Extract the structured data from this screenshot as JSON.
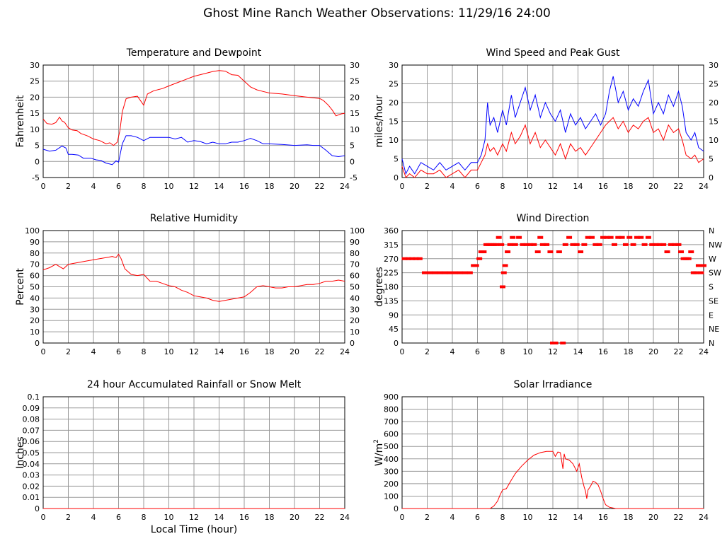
{
  "page": {
    "title": "Ghost Mine Ranch Weather Observations: 11/29/16 24:00"
  },
  "colors": {
    "primary": "#ff0000",
    "secondary": "#0000ff",
    "grid": "#999999"
  },
  "chart_data": [
    {
      "id": "temp",
      "type": "line",
      "title": "Temperature and Dewpoint",
      "ylabel": "Fahrenheit",
      "xlim": [
        0,
        24
      ],
      "ylim": [
        -5,
        30
      ],
      "yticks": [
        -5,
        0,
        5,
        10,
        15,
        20,
        25,
        30
      ],
      "right_ticks": [
        "-5",
        "0",
        "5",
        "10",
        "15",
        "20",
        "25",
        "30"
      ],
      "xticks": [
        0,
        2,
        4,
        6,
        8,
        10,
        12,
        14,
        16,
        18,
        20,
        22,
        24
      ],
      "grid": true,
      "series": [
        {
          "color": "#ff0000",
          "x": [
            0,
            0.3,
            0.7,
            1.0,
            1.3,
            1.5,
            1.7,
            2.0,
            2.3,
            2.7,
            3.0,
            3.5,
            4.0,
            4.5,
            5.0,
            5.3,
            5.6,
            5.9,
            6.1,
            6.3,
            6.6,
            7.0,
            7.5,
            8.0,
            8.3,
            8.8,
            9.5,
            10.0,
            11.0,
            12.0,
            13.0,
            13.5,
            14.0,
            14.5,
            15.0,
            15.5,
            16.0,
            16.5,
            17.0,
            17.5,
            18.0,
            19.0,
            20.0,
            21.0,
            22.0,
            22.3,
            22.7,
            23.0,
            23.3,
            23.7,
            24.0
          ],
          "y": [
            13.2,
            11.8,
            11.6,
            12.1,
            13.8,
            12.6,
            12.2,
            10.5,
            9.8,
            9.6,
            8.7,
            8.0,
            7.0,
            6.5,
            5.5,
            5.8,
            5.0,
            6.0,
            9.5,
            15.5,
            19.5,
            20.0,
            20.3,
            17.5,
            21.0,
            22.0,
            22.7,
            23.5,
            25.0,
            26.5,
            27.5,
            28.0,
            28.3,
            28.1,
            27.0,
            26.8,
            25.0,
            23.2,
            22.3,
            21.8,
            21.3,
            21.0,
            20.5,
            20.0,
            19.6,
            19.0,
            17.5,
            16.0,
            14.2,
            14.8,
            15.0
          ]
        },
        {
          "color": "#0000ff",
          "x": [
            0,
            0.5,
            1.0,
            1.5,
            1.8,
            2.0,
            2.3,
            2.8,
            3.2,
            3.8,
            4.2,
            4.6,
            5.0,
            5.3,
            5.5,
            5.8,
            6.0,
            6.3,
            6.6,
            7.0,
            7.5,
            8.0,
            8.5,
            9.0,
            9.5,
            10.0,
            10.5,
            11.0,
            11.5,
            12.0,
            12.5,
            13.0,
            13.5,
            14.0,
            14.5,
            15.0,
            15.5,
            16.0,
            16.5,
            17.0,
            17.5,
            18.0,
            19.0,
            20.0,
            21.0,
            21.5,
            22.0,
            22.5,
            23.0,
            23.5,
            24.0
          ],
          "y": [
            3.8,
            3.2,
            3.5,
            4.8,
            4.2,
            2.2,
            2.2,
            2.0,
            1.0,
            1.0,
            0.5,
            0.3,
            -0.5,
            -0.8,
            -1.0,
            0.2,
            -0.2,
            5.5,
            8.0,
            8.0,
            7.5,
            6.5,
            7.5,
            7.5,
            7.5,
            7.5,
            7.0,
            7.5,
            6.0,
            6.5,
            6.2,
            5.5,
            6.0,
            5.5,
            5.5,
            6.0,
            6.0,
            6.5,
            7.2,
            6.5,
            5.5,
            5.5,
            5.3,
            5.0,
            5.2,
            5.0,
            5.0,
            3.5,
            1.8,
            1.5,
            1.8
          ]
        }
      ]
    },
    {
      "id": "wind",
      "type": "line",
      "title": "Wind Speed and Peak Gust",
      "ylabel": "miles/hour",
      "xlim": [
        0,
        24
      ],
      "ylim": [
        0,
        30
      ],
      "yticks": [
        0,
        5,
        10,
        15,
        20,
        25,
        30
      ],
      "right_ticks": [
        "0",
        "5",
        "10",
        "15",
        "20",
        "25",
        "30"
      ],
      "xticks": [
        0,
        2,
        4,
        6,
        8,
        10,
        12,
        14,
        16,
        18,
        20,
        22,
        24
      ],
      "grid": true,
      "series": [
        {
          "color": "#0000ff",
          "x": [
            0,
            0.3,
            0.6,
            1.0,
            1.5,
            2.0,
            2.5,
            3.0,
            3.5,
            4.0,
            4.5,
            5.0,
            5.5,
            6.0,
            6.3,
            6.6,
            6.8,
            7.0,
            7.3,
            7.6,
            8.0,
            8.3,
            8.7,
            9.0,
            9.4,
            9.8,
            10.2,
            10.6,
            11.0,
            11.4,
            11.8,
            12.2,
            12.6,
            13.0,
            13.4,
            13.8,
            14.2,
            14.6,
            15.0,
            15.4,
            15.8,
            16.2,
            16.5,
            16.8,
            17.2,
            17.6,
            18.0,
            18.4,
            18.8,
            19.2,
            19.6,
            20.0,
            20.4,
            20.8,
            21.2,
            21.6,
            22.0,
            22.3,
            22.6,
            23.0,
            23.3,
            23.6,
            24.0
          ],
          "y": [
            5,
            1,
            3,
            1,
            4,
            3,
            2,
            4,
            2,
            3,
            4,
            2,
            4,
            4,
            6,
            10,
            20,
            14,
            16,
            12,
            18,
            14,
            22,
            16,
            20,
            24,
            18,
            22,
            16,
            20,
            17,
            15,
            18,
            12,
            17,
            14,
            16,
            13,
            15,
            17,
            14,
            17,
            23,
            27,
            20,
            23,
            18,
            21,
            19,
            23,
            26,
            17,
            20,
            17,
            22,
            19,
            23,
            19,
            12,
            10,
            12,
            8,
            7
          ]
        },
        {
          "color": "#ff0000",
          "x": [
            0,
            0.3,
            0.6,
            1.0,
            1.5,
            2.0,
            2.5,
            3.0,
            3.5,
            4.0,
            4.5,
            5.0,
            5.5,
            6.0,
            6.3,
            6.6,
            6.8,
            7.0,
            7.3,
            7.6,
            8.0,
            8.3,
            8.7,
            9.0,
            9.4,
            9.8,
            10.2,
            10.6,
            11.0,
            11.4,
            11.8,
            12.2,
            12.6,
            13.0,
            13.4,
            13.8,
            14.2,
            14.6,
            15.0,
            15.4,
            15.8,
            16.2,
            16.5,
            16.8,
            17.2,
            17.6,
            18.0,
            18.4,
            18.8,
            19.2,
            19.6,
            20.0,
            20.4,
            20.8,
            21.2,
            21.6,
            22.0,
            22.3,
            22.6,
            23.0,
            23.3,
            23.6,
            24.0
          ],
          "y": [
            3,
            0,
            1,
            0,
            2,
            1,
            1,
            2,
            0,
            1,
            2,
            0,
            2,
            2,
            4,
            6,
            9,
            7,
            8,
            6,
            9,
            7,
            12,
            9,
            11,
            14,
            9,
            12,
            8,
            10,
            8,
            6,
            9,
            5,
            9,
            7,
            8,
            6,
            8,
            10,
            12,
            14,
            15,
            16,
            13,
            15,
            12,
            14,
            13,
            15,
            16,
            12,
            13,
            10,
            14,
            12,
            13,
            10,
            6,
            5,
            6,
            4,
            5
          ]
        }
      ]
    },
    {
      "id": "rh",
      "type": "line",
      "title": "Relative Humidity",
      "ylabel": "Percent",
      "xlim": [
        0,
        24
      ],
      "ylim": [
        0,
        100
      ],
      "yticks": [
        0,
        10,
        20,
        30,
        40,
        50,
        60,
        70,
        80,
        90,
        100
      ],
      "right_ticks": [
        "0",
        "10",
        "20",
        "30",
        "40",
        "50",
        "60",
        "70",
        "80",
        "90",
        "100"
      ],
      "xticks": [
        0,
        2,
        4,
        6,
        8,
        10,
        12,
        14,
        16,
        18,
        20,
        22,
        24
      ],
      "grid": true,
      "series": [
        {
          "color": "#ff0000",
          "x": [
            0,
            0.5,
            1.0,
            1.3,
            1.6,
            2.0,
            2.5,
            3.0,
            3.5,
            4.0,
            4.5,
            5.0,
            5.5,
            5.8,
            6.0,
            6.2,
            6.5,
            7.0,
            7.5,
            8.0,
            8.5,
            9.0,
            9.5,
            10.0,
            10.5,
            11.0,
            11.5,
            12.0,
            12.5,
            13.0,
            13.5,
            14.0,
            14.5,
            15.0,
            15.5,
            16.0,
            16.5,
            17.0,
            17.5,
            18.0,
            18.5,
            19.0,
            19.5,
            20.0,
            20.5,
            21.0,
            21.5,
            22.0,
            22.5,
            23.0,
            23.5,
            24.0
          ],
          "y": [
            65,
            67,
            70,
            68,
            66,
            70,
            71,
            72,
            73,
            74,
            75,
            76,
            77,
            76,
            79,
            75,
            66,
            61,
            60,
            61,
            55,
            55,
            53,
            51,
            50,
            47,
            45,
            42,
            41,
            40,
            38,
            37,
            38,
            39,
            40,
            41,
            45,
            50,
            51,
            50,
            49,
            49,
            50,
            50,
            51,
            52,
            52,
            53,
            55,
            55,
            56,
            55
          ]
        }
      ]
    },
    {
      "id": "wdir",
      "type": "scatter",
      "title": "Wind Direction",
      "ylabel": "degrees",
      "xlim": [
        0,
        24
      ],
      "ylim": [
        0,
        360
      ],
      "yticks": [
        0,
        45,
        90,
        135,
        180,
        225,
        270,
        315,
        360
      ],
      "right_ticks": [
        "N",
        "NE",
        "E",
        "SE",
        "S",
        "SW",
        "W",
        "NW",
        "N"
      ],
      "xticks": [
        0,
        2,
        4,
        6,
        8,
        10,
        12,
        14,
        16,
        18,
        20,
        22,
        24
      ],
      "grid": true,
      "series": [
        {
          "color": "#ff0000",
          "x": [
            0.2,
            0.5,
            0.8,
            1.1,
            1.4,
            1.8,
            2.2,
            2.6,
            3.0,
            3.4,
            3.8,
            4.2,
            4.6,
            5.0,
            5.4,
            5.7,
            5.9,
            6.15,
            6.3,
            6.5,
            6.7,
            6.9,
            7.1,
            7.3,
            7.5,
            7.7,
            7.9,
            8.0,
            8.1,
            8.2,
            8.4,
            8.6,
            8.8,
            9.0,
            9.3,
            9.6,
            9.9,
            10.2,
            10.5,
            10.8,
            11.0,
            11.2,
            11.5,
            11.8,
            12.0,
            12.2,
            12.5,
            12.8,
            13.0,
            13.3,
            13.6,
            13.9,
            14.2,
            14.5,
            14.8,
            15.1,
            15.4,
            15.7,
            16.0,
            16.3,
            16.6,
            16.9,
            17.2,
            17.5,
            17.8,
            18.1,
            18.4,
            18.7,
            19.0,
            19.3,
            19.6,
            19.9,
            20.2,
            20.5,
            20.8,
            21.1,
            21.4,
            21.7,
            22.0,
            22.2,
            22.4,
            22.6,
            22.8,
            23.0,
            23.2,
            23.4,
            23.6,
            23.8,
            24.0
          ],
          "y": [
            270,
            270,
            270,
            270,
            270,
            225,
            225,
            225,
            225,
            225,
            225,
            225,
            225,
            225,
            225,
            248,
            248,
            270,
            292,
            292,
            315,
            315,
            315,
            315,
            315,
            338,
            315,
            180,
            225,
            248,
            292,
            315,
            338,
            315,
            338,
            315,
            315,
            315,
            315,
            292,
            338,
            315,
            315,
            292,
            0,
            0,
            292,
            0,
            315,
            338,
            315,
            315,
            292,
            315,
            338,
            338,
            315,
            315,
            338,
            338,
            338,
            315,
            338,
            338,
            315,
            338,
            315,
            338,
            338,
            315,
            338,
            315,
            315,
            315,
            315,
            292,
            315,
            315,
            315,
            292,
            270,
            270,
            270,
            292,
            225,
            225,
            248,
            225,
            248
          ]
        }
      ]
    },
    {
      "id": "rain",
      "type": "line",
      "title": "24 hour Accumulated Rainfall or Snow Melt",
      "ylabel": "Inches",
      "xlabel": "Local Time (hour)",
      "xlim": [
        0,
        24
      ],
      "ylim": [
        0,
        0.1
      ],
      "yticks": [
        0,
        0.01,
        0.02,
        0.03,
        0.04,
        0.05,
        0.06,
        0.07,
        0.08,
        0.09,
        0.1
      ],
      "right_ticks": [],
      "xticks": [
        0,
        2,
        4,
        6,
        8,
        10,
        12,
        14,
        16,
        18,
        20,
        22,
        24
      ],
      "grid": true,
      "series": [
        {
          "color": "#ff0000",
          "x": [
            0,
            24
          ],
          "y": [
            0,
            0
          ]
        }
      ]
    },
    {
      "id": "solar",
      "type": "line",
      "title": "Solar Irradiance",
      "ylabel": "W/m",
      "ylabel_sup": "2",
      "xlim": [
        0,
        24
      ],
      "ylim": [
        0,
        900
      ],
      "yticks": [
        0,
        100,
        200,
        300,
        400,
        500,
        600,
        700,
        800,
        900
      ],
      "right_ticks": [],
      "xticks": [
        0,
        2,
        4,
        6,
        8,
        10,
        12,
        14,
        16,
        18,
        20,
        22,
        24
      ],
      "grid": true,
      "series": [
        {
          "color": "#ff0000",
          "x": [
            0,
            7.0,
            7.3,
            7.6,
            7.8,
            8.0,
            8.3,
            8.7,
            9.0,
            9.5,
            10.0,
            10.5,
            11.0,
            11.5,
            12.0,
            12.2,
            12.4,
            12.6,
            12.8,
            12.9,
            13.0,
            13.3,
            13.6,
            13.9,
            14.1,
            14.3,
            14.5,
            14.6,
            14.7,
            14.8,
            15.0,
            15.2,
            15.4,
            15.6,
            15.8,
            16.0,
            16.2,
            16.5,
            17.0,
            24
          ],
          "y": [
            0,
            0,
            20,
            60,
            110,
            150,
            160,
            230,
            280,
            340,
            390,
            430,
            450,
            460,
            460,
            420,
            455,
            450,
            320,
            440,
            400,
            390,
            360,
            300,
            360,
            250,
            170,
            140,
            80,
            150,
            180,
            220,
            210,
            190,
            140,
            80,
            30,
            10,
            0,
            0
          ]
        }
      ]
    }
  ]
}
